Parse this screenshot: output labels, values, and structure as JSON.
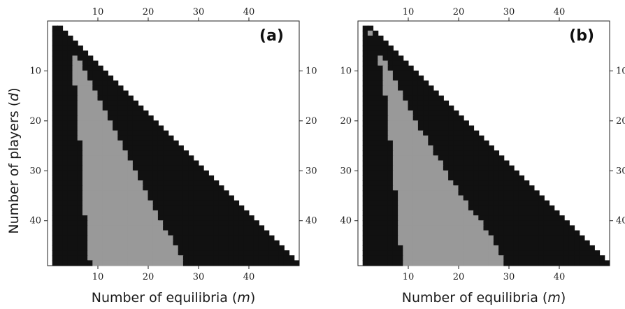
{
  "chart_data": {
    "type": "heatmap",
    "xlabel": "Number of equilibria (m)",
    "xlabel_parts": [
      "Number of equilibria (",
      "m",
      ")"
    ],
    "ylabel": "Number of players (d)",
    "ylabel_parts": [
      "Number of players (",
      "d",
      ")"
    ],
    "x_ticks": [
      10,
      20,
      30,
      40
    ],
    "y_ticks": [
      10,
      20,
      30,
      40
    ],
    "xlim": [
      0,
      50
    ],
    "ylim": [
      49,
      0
    ],
    "grid": false,
    "colors": {
      "black": "#111111",
      "gray": "#999999",
      "white": "#ffffff"
    },
    "note": "",
    "panels": [
      {
        "label": "(a)",
        "cells": "for each d from 1 to 48, m from 1 to d+1; gray where gray_from[d] <= m <= gray_to[d], otherwise black",
        "gray_from": [
          null,
          null,
          null,
          null,
          null,
          null,
          null,
          5,
          5,
          5,
          5,
          5,
          5,
          6,
          6,
          6,
          6,
          6,
          6,
          6,
          6,
          6,
          6,
          6,
          7,
          7,
          7,
          7,
          7,
          7,
          7,
          7,
          7,
          7,
          7,
          7,
          7,
          7,
          7,
          8,
          8,
          8,
          8,
          8,
          8,
          8,
          8,
          8,
          9
        ],
        "gray_to": [
          null,
          null,
          null,
          null,
          null,
          null,
          null,
          5,
          6,
          6,
          7,
          7,
          8,
          8,
          9,
          9,
          10,
          10,
          11,
          11,
          12,
          12,
          13,
          13,
          14,
          14,
          15,
          15,
          16,
          16,
          17,
          17,
          18,
          18,
          19,
          19,
          20,
          20,
          21,
          21,
          22,
          22,
          23,
          24,
          24,
          25,
          25,
          26,
          26
        ]
      },
      {
        "label": "(b)",
        "cells": "for each d from 1 to 48, m from 1 to d+1; gray where gray_from[d] <= m <= gray_to[d], otherwise black",
        "gray_from": [
          null,
          null,
          2,
          null,
          null,
          null,
          null,
          4,
          4,
          5,
          5,
          5,
          5,
          5,
          5,
          6,
          6,
          6,
          6,
          6,
          6,
          6,
          6,
          6,
          7,
          7,
          7,
          7,
          7,
          7,
          7,
          7,
          7,
          7,
          8,
          8,
          8,
          8,
          8,
          8,
          8,
          8,
          8,
          8,
          8,
          9,
          9,
          9,
          9
        ],
        "gray_to": [
          null,
          null,
          2,
          null,
          null,
          null,
          null,
          4,
          5,
          5,
          6,
          6,
          7,
          7,
          8,
          8,
          9,
          9,
          10,
          10,
          11,
          11,
          12,
          13,
          13,
          14,
          14,
          15,
          16,
          16,
          17,
          17,
          18,
          19,
          19,
          20,
          21,
          21,
          22,
          23,
          24,
          24,
          25,
          26,
          26,
          27,
          27,
          28,
          28
        ]
      }
    ]
  }
}
